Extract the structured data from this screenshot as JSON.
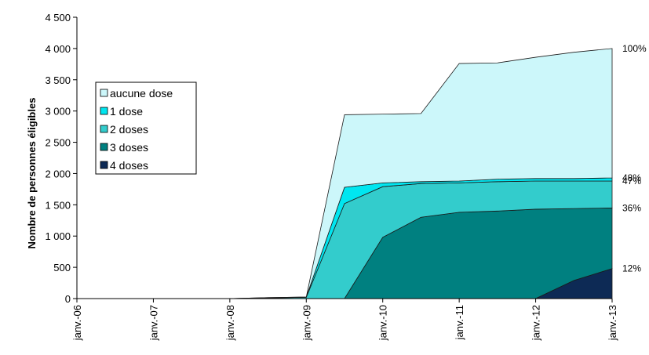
{
  "chart_data": {
    "type": "area",
    "stacked": true,
    "title": "",
    "xlabel": "",
    "ylabel": "Nombre de personnes éligibles",
    "ylim": [
      0,
      4500
    ],
    "yticks": [
      0,
      500,
      1000,
      1500,
      2000,
      2500,
      3000,
      3500,
      4000,
      4500
    ],
    "ytick_labels": [
      "0",
      "500",
      "1 000",
      "1 500",
      "2 000",
      "2 500",
      "3 000",
      "3 500",
      "4 000",
      "4 500"
    ],
    "xtick_labels": [
      "janv.-06",
      "janv.-07",
      "janv.-08",
      "janv.-09",
      "janv.-10",
      "janv.-11",
      "janv.-12",
      "janv.-13"
    ],
    "x": [
      "janv.-06",
      "juil.-06",
      "janv.-07",
      "juil.-07",
      "janv.-08",
      "juil.-08",
      "janv.-09",
      "juil.-09",
      "janv.-10",
      "juil.-10",
      "janv.-11",
      "juil.-11",
      "janv.-12",
      "juil.-12",
      "janv.-13"
    ],
    "series": [
      {
        "name": "4 doses",
        "color": "#0d2a55",
        "values": [
          0,
          0,
          0,
          0,
          0,
          0,
          0,
          0,
          0,
          0,
          0,
          0,
          0,
          290,
          480
        ]
      },
      {
        "name": "3 doses",
        "color": "#008080",
        "values": [
          0,
          0,
          0,
          0,
          0,
          0,
          0,
          0,
          980,
          1300,
          1380,
          1400,
          1430,
          1150,
          970
        ]
      },
      {
        "name": "2 doses",
        "color": "#33cccc",
        "values": [
          0,
          0,
          0,
          0,
          0,
          10,
          20,
          1520,
          810,
          540,
          470,
          470,
          450,
          440,
          430
        ]
      },
      {
        "name": "1 dose",
        "color": "#00e6f0",
        "values": [
          0,
          0,
          0,
          0,
          0,
          5,
          5,
          260,
          60,
          30,
          30,
          40,
          40,
          40,
          50
        ]
      },
      {
        "name": "aucune dose",
        "color": "#ccf7fa",
        "values": [
          0,
          0,
          0,
          0,
          0,
          0,
          0,
          1160,
          1100,
          1090,
          1880,
          1860,
          1940,
          2020,
          2070
        ]
      }
    ],
    "legend": {
      "position": "left",
      "order": [
        "aucune dose",
        "1 dose",
        "2 doses",
        "3 doses",
        "4 doses"
      ]
    },
    "end_labels": [
      "100%",
      "48%",
      "47%",
      "36%",
      "12%"
    ],
    "end_label_values": [
      4000,
      1930,
      1880,
      1450,
      480
    ]
  }
}
